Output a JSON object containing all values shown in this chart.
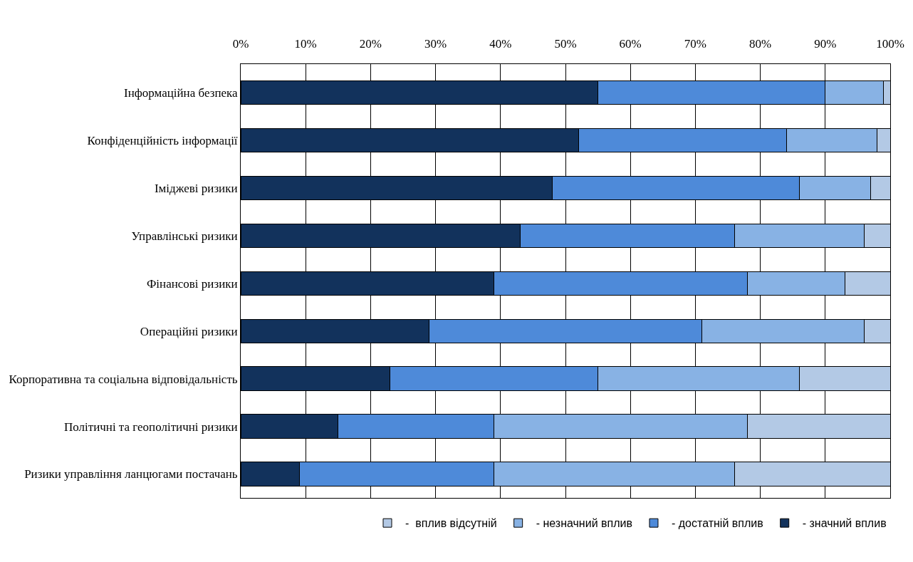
{
  "chart_data": {
    "type": "bar",
    "orientation": "horizontal",
    "stacked": true,
    "categories": [
      "Інформаційна безпека",
      "Конфіденційність інформації",
      "Іміджеві ризики",
      "Управлінські ризики",
      "Фінансові ризики",
      "Операційні ризики",
      "Корпоративна та соціальна відповідальність",
      "Політичні та геополітичні ризики",
      "Ризики управління ланцюгами постачань"
    ],
    "series": [
      {
        "name": "- значний вплив",
        "color": "#12325c",
        "values": [
          55,
          52,
          48,
          43,
          39,
          29,
          23,
          15,
          9
        ]
      },
      {
        "name": "- достатній вплив",
        "color": "#4e8ad9",
        "values": [
          35,
          32,
          38,
          33,
          39,
          42,
          32,
          24,
          30
        ]
      },
      {
        "name": "- незначний вплив",
        "color": "#88b2e4",
        "values": [
          9,
          14,
          11,
          20,
          15,
          25,
          31,
          39,
          37
        ]
      },
      {
        "name": "-  вплив відсутній",
        "color": "#b3c9e5",
        "values": [
          1,
          2,
          3,
          4,
          7,
          4,
          14,
          22,
          24
        ]
      }
    ],
    "xlim": [
      0,
      100
    ],
    "xticks": [
      {
        "value": 0,
        "label": "0%"
      },
      {
        "value": 10,
        "label": "10%"
      },
      {
        "value": 20,
        "label": "20%"
      },
      {
        "value": 30,
        "label": "30%"
      },
      {
        "value": 40,
        "label": "40%"
      },
      {
        "value": 50,
        "label": "50%"
      },
      {
        "value": 60,
        "label": "60%"
      },
      {
        "value": 70,
        "label": "70%"
      },
      {
        "value": 80,
        "label": "80%"
      },
      {
        "value": 90,
        "label": "90%"
      },
      {
        "value": 100,
        "label": "100%"
      }
    ],
    "grid": "x",
    "legend": "bottom"
  }
}
